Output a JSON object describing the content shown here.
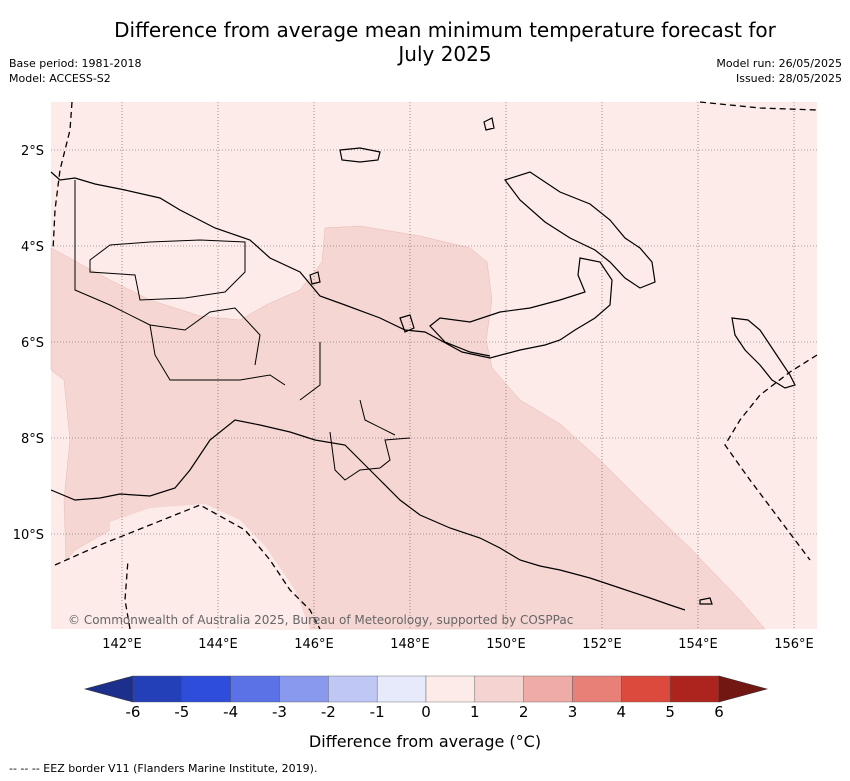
{
  "title_line1": "Difference from average mean minimum temperature forecast for",
  "title_line2": "July 2025",
  "base_period": "Base period: 1981-2018",
  "model": "Model: ACCESS-S2",
  "model_run": "Model run: 26/05/2025",
  "issued": "Issued: 28/05/2025",
  "lat_labels": [
    "2°S",
    "4°S",
    "6°S",
    "8°S",
    "10°S"
  ],
  "lon_labels": [
    "142°E",
    "144°E",
    "146°E",
    "148°E",
    "150°E",
    "152°E",
    "154°E",
    "156°E"
  ],
  "colorbar": {
    "ticks": [
      "-6",
      "-5",
      "-4",
      "-3",
      "-2",
      "-1",
      "0",
      "1",
      "2",
      "3",
      "4",
      "5",
      "6"
    ],
    "colors": [
      "#1c2f8c",
      "#2440b8",
      "#2e4ddb",
      "#5a72e6",
      "#8899ee",
      "#bfc7f5",
      "#e6eafb",
      "#fcebe9",
      "#f5d3d0",
      "#efaba5",
      "#e88077",
      "#dc4a3e",
      "#ad241e",
      "#731712"
    ],
    "title": "Difference from average (°C)"
  },
  "copyright": "© Commonwealth of Australia 2025, Bureau of Meteorology, supported by COSPPac",
  "footnote": "-- -- -- EEZ border V11 (Flanders Marine Institute, 2019).",
  "map_colors": {
    "light": "#fcebe9",
    "medium": "#f5d6d2"
  }
}
